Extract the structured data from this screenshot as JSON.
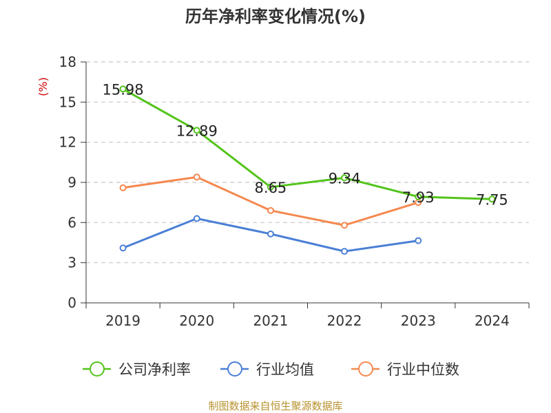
{
  "chart_data": {
    "type": "line",
    "title": "历年净利率变化情况(%)",
    "ylabel": "(%)",
    "xlabel": "",
    "categories": [
      "2019",
      "2020",
      "2021",
      "2022",
      "2023",
      "2024"
    ],
    "ylim": [
      0,
      18
    ],
    "yticks": [
      0,
      3,
      6,
      9,
      12,
      15,
      18
    ],
    "grid": true,
    "legend_position": "bottom",
    "series": [
      {
        "name": "公司净利率",
        "color": "#52c41a",
        "values": [
          15.98,
          12.89,
          8.65,
          9.34,
          7.93,
          7.75
        ],
        "labels": [
          "15.98",
          "12.89",
          "8.65",
          "9.34",
          "7.93",
          "7.75"
        ]
      },
      {
        "name": "行业均值",
        "color": "#4a7fd6",
        "values": [
          4.1,
          6.3,
          5.15,
          3.85,
          4.65,
          null
        ]
      },
      {
        "name": "行业中位数",
        "color": "#f5884f",
        "values": [
          8.6,
          9.4,
          6.9,
          5.8,
          7.5,
          null
        ]
      }
    ]
  },
  "unit_color": "#cc0000",
  "source": {
    "text": "制图数据来自恒生聚源数据库",
    "color": "#b8922e"
  }
}
